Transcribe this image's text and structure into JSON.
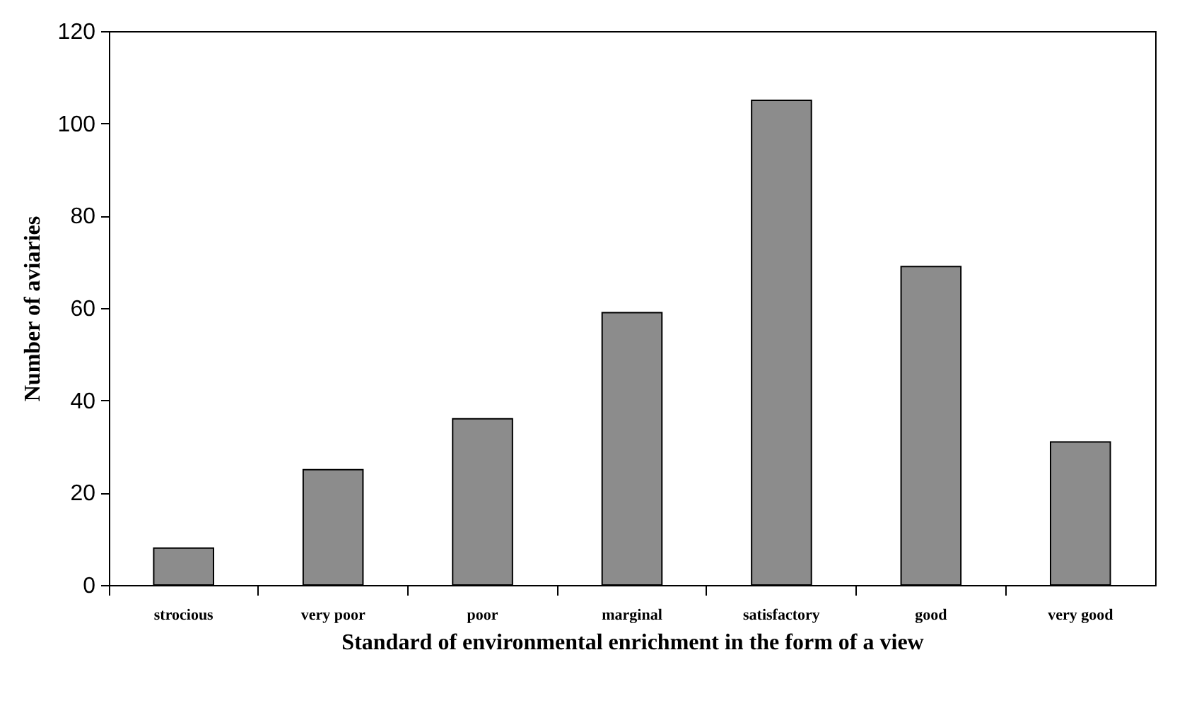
{
  "chart_data": {
    "type": "bar",
    "xlabel": "Standard of environmental enrichment in the form of a view",
    "ylabel": "Number of aviaries",
    "categories": [
      "strocious",
      "very poor",
      "poor",
      "marginal",
      "satisfactory",
      "good",
      "very good"
    ],
    "values": [
      8,
      25,
      36,
      59,
      105,
      69,
      31
    ],
    "color": "#8c8c8c",
    "ylim": [
      0,
      120
    ],
    "yticks": [
      0,
      20,
      40,
      60,
      80,
      100,
      120
    ],
    "grid": false
  }
}
